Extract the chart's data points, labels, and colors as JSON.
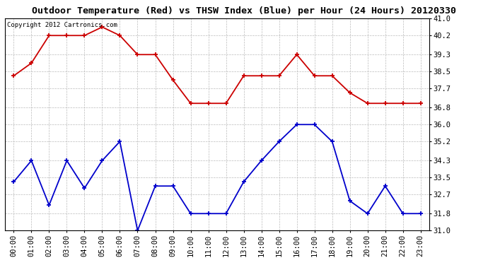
{
  "title": "Outdoor Temperature (Red) vs THSW Index (Blue) per Hour (24 Hours) 20120330",
  "copyright_text": "Copyright 2012 Cartronics.com",
  "x_labels": [
    "00:00",
    "01:00",
    "02:00",
    "03:00",
    "04:00",
    "05:00",
    "06:00",
    "07:00",
    "08:00",
    "09:00",
    "10:00",
    "11:00",
    "12:00",
    "13:00",
    "14:00",
    "15:00",
    "16:00",
    "17:00",
    "18:00",
    "19:00",
    "20:00",
    "21:00",
    "22:00",
    "23:00"
  ],
  "red_data": [
    38.3,
    38.9,
    40.2,
    40.2,
    40.2,
    40.6,
    40.2,
    39.3,
    39.3,
    38.1,
    37.0,
    37.0,
    37.0,
    38.3,
    38.3,
    38.3,
    39.3,
    38.3,
    38.3,
    37.5,
    37.0,
    37.0,
    37.0,
    37.0
  ],
  "blue_data": [
    33.3,
    34.3,
    32.2,
    34.3,
    33.0,
    34.3,
    35.2,
    31.0,
    33.1,
    33.1,
    31.8,
    31.8,
    31.8,
    33.3,
    34.3,
    35.2,
    36.0,
    36.0,
    35.2,
    32.4,
    31.8,
    33.1,
    31.8,
    31.8
  ],
  "red_color": "#cc0000",
  "blue_color": "#0000cc",
  "bg_color": "#ffffff",
  "grid_color": "#bbbbbb",
  "ylim_min": 31.0,
  "ylim_max": 41.0,
  "yticks": [
    31.0,
    31.8,
    32.7,
    33.5,
    34.3,
    35.2,
    36.0,
    36.8,
    37.7,
    38.5,
    39.3,
    40.2,
    41.0
  ],
  "title_fontsize": 9.5,
  "copyright_fontsize": 6.5,
  "tick_fontsize": 7.5,
  "marker": "+"
}
